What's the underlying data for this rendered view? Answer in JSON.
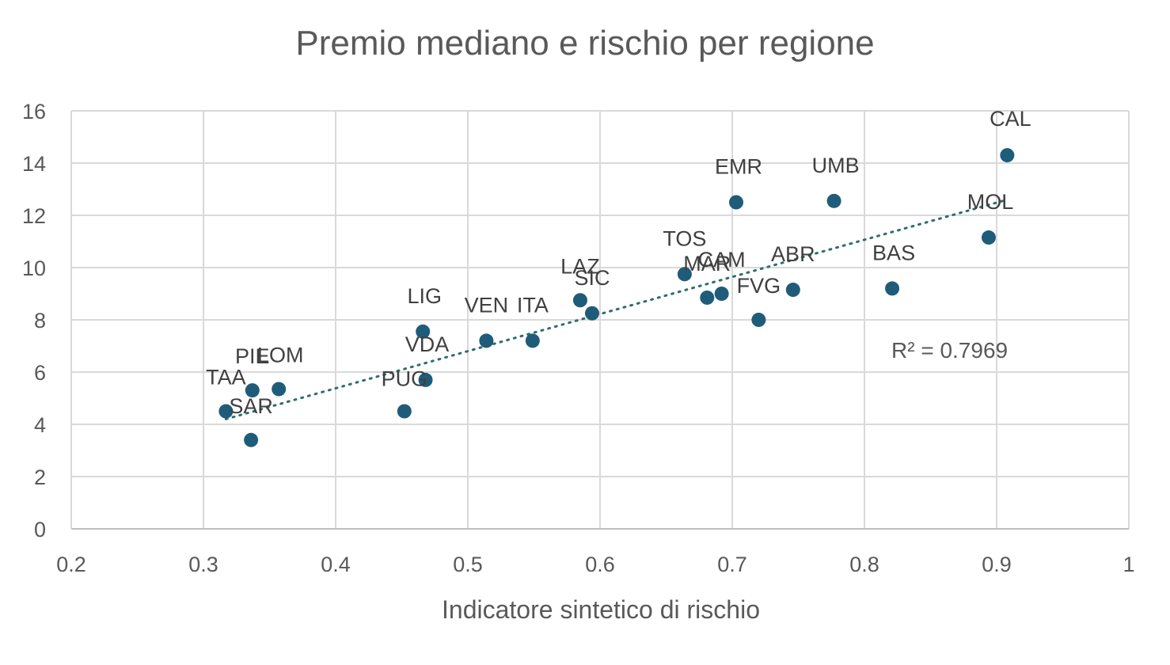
{
  "chart_data": {
    "type": "scatter",
    "title": "Premio mediano e rischio per regione",
    "xlabel": "Indicatore sintetico di rischio",
    "ylabel": "",
    "xlim": [
      0.2,
      1
    ],
    "ylim": [
      0,
      16
    ],
    "xticks": [
      "0.2",
      "0.3",
      "0.4",
      "0.5",
      "0.6",
      "0.7",
      "0.8",
      "0.9",
      "1"
    ],
    "yticks": [
      "0",
      "2",
      "4",
      "6",
      "8",
      "10",
      "12",
      "14",
      "16"
    ],
    "grid": true,
    "marker_color": "#1f5c7a",
    "trendline": {
      "type": "linear",
      "style": "dotted",
      "color": "#2e6e6a",
      "x": [
        0.317,
        0.908
      ],
      "y": [
        4.2,
        12.6
      ]
    },
    "r_squared_label": "R² = 0.7969",
    "points": [
      {
        "label": "TAA",
        "x": 0.317,
        "y": 4.5
      },
      {
        "label": "PIE",
        "x": 0.337,
        "y": 5.3
      },
      {
        "label": "SAR",
        "x": 0.336,
        "y": 3.4
      },
      {
        "label": "LOM",
        "x": 0.357,
        "y": 5.35
      },
      {
        "label": "LIG",
        "x": 0.466,
        "y": 7.55
      },
      {
        "label": "VDA",
        "x": 0.468,
        "y": 5.7
      },
      {
        "label": "PUG",
        "x": 0.452,
        "y": 4.5
      },
      {
        "label": "VEN",
        "x": 0.514,
        "y": 7.2
      },
      {
        "label": "ITA",
        "x": 0.549,
        "y": 7.2
      },
      {
        "label": "LAZ",
        "x": 0.585,
        "y": 8.75
      },
      {
        "label": "SIC",
        "x": 0.594,
        "y": 8.25
      },
      {
        "label": "TOS",
        "x": 0.664,
        "y": 9.75
      },
      {
        "label": "MAR",
        "x": 0.681,
        "y": 8.85
      },
      {
        "label": "CAM",
        "x": 0.692,
        "y": 9.0
      },
      {
        "label": "FVG",
        "x": 0.72,
        "y": 8.0
      },
      {
        "label": "EMR",
        "x": 0.703,
        "y": 12.5
      },
      {
        "label": "ABR",
        "x": 0.746,
        "y": 9.15
      },
      {
        "label": "UMB",
        "x": 0.777,
        "y": 12.55
      },
      {
        "label": "BAS",
        "x": 0.821,
        "y": 9.2
      },
      {
        "label": "MOL",
        "x": 0.894,
        "y": 11.15
      },
      {
        "label": "CAL",
        "x": 0.908,
        "y": 14.3
      }
    ]
  }
}
